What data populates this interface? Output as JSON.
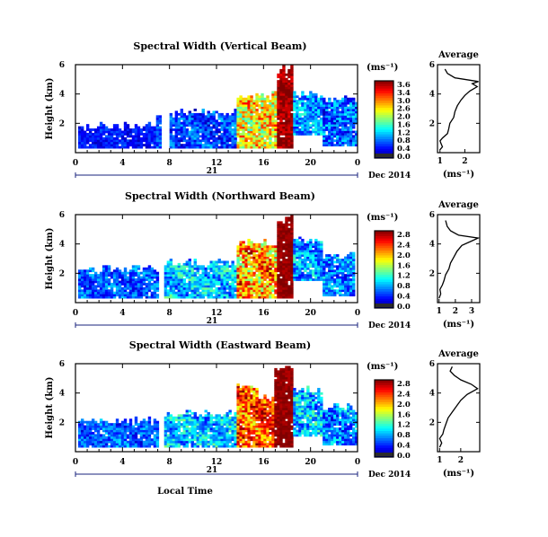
{
  "chart_data": [
    {
      "type": "heatmap",
      "title": "Spectral Width (Vertical Beam)",
      "ylabel": "Height (km)",
      "ylim": [
        0,
        6
      ],
      "yticks": [
        "6",
        "4",
        "2"
      ],
      "xlim": [
        0,
        24
      ],
      "xticks": [
        "0",
        "4",
        "8",
        "12",
        "16",
        "20",
        "0"
      ],
      "day_label": "21",
      "date_label": "Dec 2014",
      "colorbar": {
        "unit": "(ms⁻¹)",
        "ticks": [
          "3.6",
          "3.4",
          "3.0",
          "2.6",
          "2.0",
          "1.6",
          "1.2",
          "0.8",
          "0.4",
          "0.0"
        ],
        "range": [
          0,
          3.6
        ]
      },
      "average": {
        "title": "Average",
        "xlabel": "(ms⁻¹)",
        "xticks": [
          "1",
          "2"
        ],
        "xlim": [
          0.9,
          2.6
        ],
        "yticks": [
          "6",
          "4",
          "2"
        ],
        "profile": [
          [
            1.0,
            0.2
          ],
          [
            1.1,
            0.4
          ],
          [
            1.05,
            0.6
          ],
          [
            1.0,
            0.8
          ],
          [
            1.1,
            1.0
          ],
          [
            1.3,
            1.3
          ],
          [
            1.35,
            1.6
          ],
          [
            1.4,
            2.0
          ],
          [
            1.55,
            2.4
          ],
          [
            1.6,
            2.8
          ],
          [
            1.7,
            3.2
          ],
          [
            1.85,
            3.6
          ],
          [
            2.0,
            3.9
          ],
          [
            2.2,
            4.2
          ],
          [
            2.5,
            4.5
          ],
          [
            2.3,
            4.7
          ],
          [
            2.55,
            4.85
          ],
          [
            1.6,
            5.1
          ],
          [
            1.3,
            5.4
          ],
          [
            1.2,
            5.7
          ]
        ]
      },
      "segments": [
        {
          "t0": 0.2,
          "t1": 6.8,
          "ylo": 0.3,
          "yhi": 2.1,
          "base": 0.5,
          "amp": 0.25,
          "wav": 0.07
        },
        {
          "t0": 6.8,
          "t1": 7.4,
          "ylo": 0.3,
          "yhi": 2.8,
          "base": 0.7,
          "amp": 0.3,
          "wav": 0.1
        },
        {
          "t0": 8.0,
          "t1": 13.8,
          "ylo": 0.3,
          "yhi": 3.0,
          "base": 0.7,
          "amp": 0.4,
          "wav": 0.15
        },
        {
          "t0": 13.8,
          "t1": 17.2,
          "ylo": 0.3,
          "yhi": 4.2,
          "base": 2.3,
          "amp": 0.7,
          "wav": 0.2
        },
        {
          "t0": 17.2,
          "t1": 18.5,
          "ylo": 0.3,
          "yhi": 6.0,
          "base": 3.5,
          "amp": 0.3,
          "wav": 0.05
        },
        {
          "t0": 18.5,
          "t1": 21.0,
          "ylo": 1.2,
          "yhi": 4.3,
          "base": 1.0,
          "amp": 0.45,
          "wav": 0.1
        },
        {
          "t0": 21.0,
          "t1": 23.9,
          "ylo": 0.4,
          "yhi": 4.0,
          "base": 0.8,
          "amp": 0.5,
          "wav": 0.1
        }
      ]
    },
    {
      "type": "heatmap",
      "title": "Spectral Width (Northward Beam)",
      "ylabel": "Height (km)",
      "ylim": [
        0,
        6
      ],
      "yticks": [
        "6",
        "4",
        "2"
      ],
      "xlim": [
        0,
        24
      ],
      "xticks": [
        "0",
        "4",
        "8",
        "12",
        "16",
        "20",
        "0"
      ],
      "day_label": "21",
      "date_label": "Dec 2014",
      "colorbar": {
        "unit": "(ms⁻¹)",
        "ticks": [
          "2.8",
          "2.4",
          "2.0",
          "1.6",
          "1.2",
          "0.8",
          "0.4",
          "0.0"
        ],
        "range": [
          0,
          2.8
        ]
      },
      "average": {
        "title": "Average",
        "xlabel": "(ms⁻¹)",
        "xticks": [
          "1",
          "2",
          "3"
        ],
        "xlim": [
          0.9,
          3.5
        ],
        "yticks": [
          "6",
          "4",
          "2"
        ],
        "profile": [
          [
            1.0,
            0.3
          ],
          [
            1.1,
            0.6
          ],
          [
            1.05,
            0.9
          ],
          [
            1.2,
            1.2
          ],
          [
            1.3,
            1.5
          ],
          [
            1.4,
            1.9
          ],
          [
            1.6,
            2.3
          ],
          [
            1.7,
            2.7
          ],
          [
            1.9,
            3.1
          ],
          [
            2.1,
            3.5
          ],
          [
            2.4,
            3.9
          ],
          [
            3.0,
            4.2
          ],
          [
            3.4,
            4.4
          ],
          [
            2.2,
            4.6
          ],
          [
            1.7,
            4.9
          ],
          [
            1.5,
            5.2
          ],
          [
            1.4,
            5.6
          ]
        ]
      },
      "segments": [
        {
          "t0": 0.3,
          "t1": 7.0,
          "ylo": 0.3,
          "yhi": 2.6,
          "base": 0.6,
          "amp": 0.3,
          "wav": 0.1
        },
        {
          "t0": 7.6,
          "t1": 13.8,
          "ylo": 0.3,
          "yhi": 3.0,
          "base": 0.9,
          "amp": 0.4,
          "wav": 0.15
        },
        {
          "t0": 13.8,
          "t1": 17.2,
          "ylo": 0.3,
          "yhi": 4.4,
          "base": 2.0,
          "amp": 0.6,
          "wav": 0.2
        },
        {
          "t0": 17.2,
          "t1": 18.5,
          "ylo": 0.3,
          "yhi": 6.0,
          "base": 2.75,
          "amp": 0.1,
          "wav": 0.02
        },
        {
          "t0": 18.5,
          "t1": 21.0,
          "ylo": 1.5,
          "yhi": 4.6,
          "base": 0.8,
          "amp": 0.4,
          "wav": 0.1
        },
        {
          "t0": 21.0,
          "t1": 23.8,
          "ylo": 0.4,
          "yhi": 3.5,
          "base": 0.7,
          "amp": 0.4,
          "wav": 0.1
        }
      ]
    },
    {
      "type": "heatmap",
      "title": "Spectral Width (Eastward Beam)",
      "ylabel": "Height (km)",
      "ylim": [
        0,
        6
      ],
      "yticks": [
        "6",
        "4",
        "2"
      ],
      "xlim": [
        0,
        24
      ],
      "xticks": [
        "0",
        "4",
        "8",
        "12",
        "16",
        "20",
        "0"
      ],
      "day_label": "21",
      "date_label": "Dec 2014",
      "xlabel": "Local Time",
      "colorbar": {
        "unit": "(ms⁻¹)",
        "ticks": [
          "2.8",
          "2.4",
          "2.0",
          "1.6",
          "1.2",
          "0.8",
          "0.4",
          "0.0"
        ],
        "range": [
          0,
          2.8
        ]
      },
      "average": {
        "title": "Average",
        "xlabel": "(ms⁻¹)",
        "xticks": [
          "1",
          "2"
        ],
        "xlim": [
          0.9,
          2.9
        ],
        "yticks": [
          "6",
          "4",
          "2"
        ],
        "profile": [
          [
            1.0,
            0.3
          ],
          [
            1.1,
            0.6
          ],
          [
            1.0,
            0.9
          ],
          [
            1.15,
            1.2
          ],
          [
            1.2,
            1.5
          ],
          [
            1.3,
            1.9
          ],
          [
            1.4,
            2.3
          ],
          [
            1.6,
            2.7
          ],
          [
            1.8,
            3.1
          ],
          [
            2.0,
            3.5
          ],
          [
            2.3,
            3.9
          ],
          [
            2.8,
            4.3
          ],
          [
            2.5,
            4.6
          ],
          [
            2.0,
            4.9
          ],
          [
            1.7,
            5.2
          ],
          [
            1.5,
            5.5
          ],
          [
            1.6,
            5.8
          ]
        ]
      },
      "segments": [
        {
          "t0": 0.3,
          "t1": 7.0,
          "ylo": 0.3,
          "yhi": 2.4,
          "base": 0.6,
          "amp": 0.3,
          "wav": 0.1
        },
        {
          "t0": 7.6,
          "t1": 13.8,
          "ylo": 0.3,
          "yhi": 2.9,
          "base": 0.9,
          "amp": 0.4,
          "wav": 0.15
        },
        {
          "t0": 13.8,
          "t1": 15.6,
          "ylo": 0.3,
          "yhi": 4.8,
          "base": 2.2,
          "amp": 0.5,
          "wav": 0.2
        },
        {
          "t0": 15.6,
          "t1": 17.0,
          "ylo": 0.3,
          "yhi": 4.0,
          "base": 2.3,
          "amp": 0.4,
          "wav": 0.2
        },
        {
          "t0": 17.0,
          "t1": 18.6,
          "ylo": 0.3,
          "yhi": 6.0,
          "base": 2.75,
          "amp": 0.1,
          "wav": 0.02
        },
        {
          "t0": 18.6,
          "t1": 21.0,
          "ylo": 1.0,
          "yhi": 4.5,
          "base": 0.9,
          "amp": 0.45,
          "wav": 0.1
        },
        {
          "t0": 21.0,
          "t1": 23.9,
          "ylo": 0.4,
          "yhi": 3.4,
          "base": 0.7,
          "amp": 0.4,
          "wav": 0.1
        }
      ]
    }
  ]
}
